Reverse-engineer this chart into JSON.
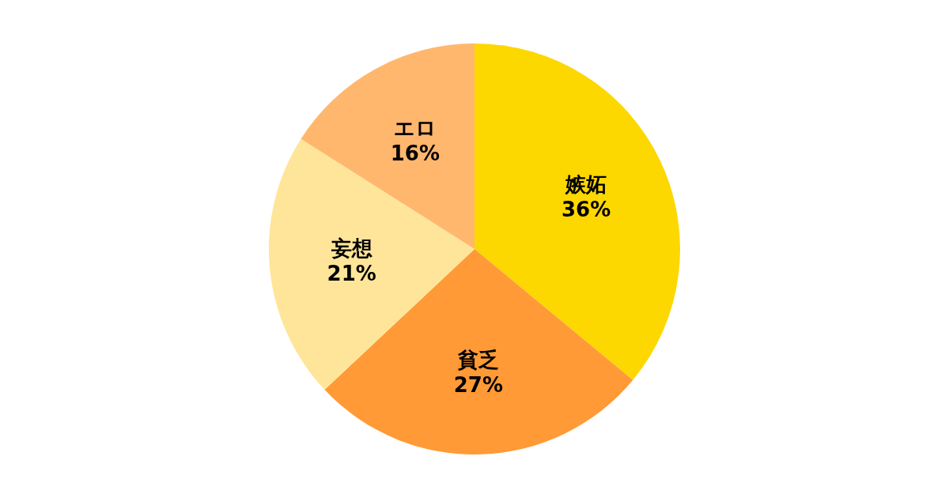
{
  "chart_data": {
    "type": "pie",
    "categories": [
      "嫉妬",
      "貧乏",
      "妄想",
      "エロ"
    ],
    "values": [
      36,
      27,
      21,
      16
    ],
    "colors": [
      "#fdd700",
      "#ff9a36",
      "#ffe599",
      "#ffb76e"
    ],
    "value_labels": [
      "36%",
      "27%",
      "21%",
      "16%"
    ]
  }
}
